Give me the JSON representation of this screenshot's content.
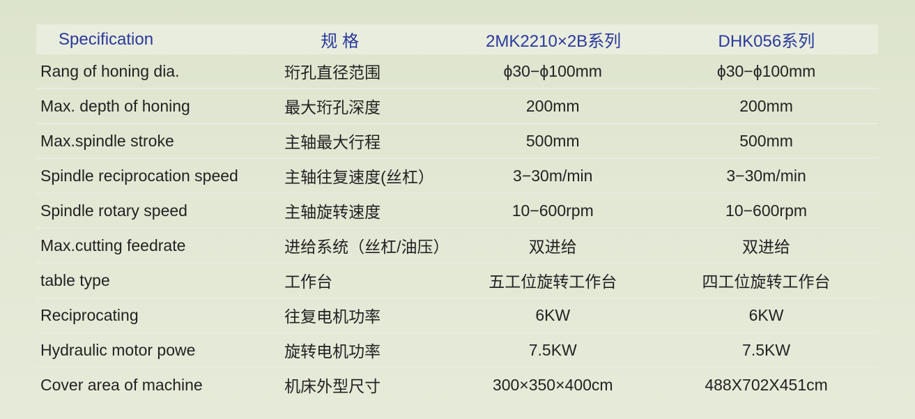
{
  "header": [
    "Specification",
    "规 格",
    "2MK2210×2B系列",
    "DHK056系列"
  ],
  "rows": [
    [
      "Rang of honing dia.",
      "珩孔直径范围",
      "ϕ30−ϕ100mm",
      "ϕ30−ϕ100mm"
    ],
    [
      "Max. depth of honing",
      "最大珩孔深度",
      "200mm",
      "200mm"
    ],
    [
      "Max.spindle stroke",
      "主轴最大行程",
      "500mm",
      "500mm"
    ],
    [
      "Spindle reciprocation speed",
      "主轴往复速度(丝杠）",
      "3−30m/min",
      "3−30m/min"
    ],
    [
      "Spindle rotary speed",
      "主轴旋转速度",
      "10−600rpm",
      "10−600rpm"
    ],
    [
      "Max.cutting feedrate",
      "进给系统（丝杠/油压）",
      "双进给",
      "双进给"
    ],
    [
      "table type",
      "工作台",
      "五工位旋转工作台",
      "四工位旋转工作台"
    ],
    [
      "Reciprocating",
      "往复电机功率",
      "6KW",
      "6KW"
    ],
    [
      "Hydraulic motor powe",
      "旋转电机功率",
      "7.5KW",
      "7.5KW"
    ],
    [
      "Cover area of machine",
      "机床外型尺寸",
      "300×350×400cm",
      "488X702X451cm"
    ]
  ],
  "colors": {
    "header_text": "#2a3a9a",
    "body_text": "#222222",
    "background": "#e1e7d2"
  }
}
